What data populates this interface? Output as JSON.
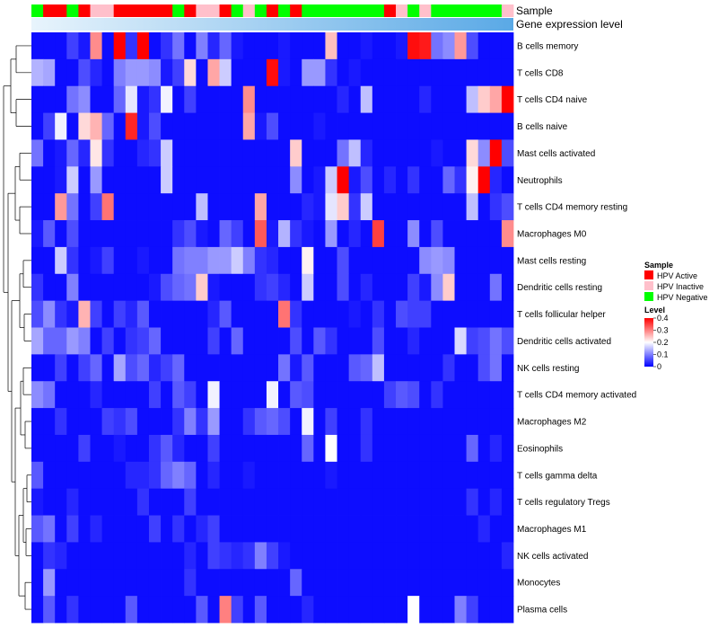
{
  "chart_data": {
    "type": "heatmap",
    "annotation_labels": [
      "Sample",
      "Gene expression level"
    ],
    "sample_legend": {
      "title": "Sample",
      "entries": [
        {
          "label": "HPV Active",
          "color": "#ff0000"
        },
        {
          "label": "HPV Inactive",
          "color": "#ffc0cb"
        },
        {
          "label": "HPV Negative",
          "color": "#00ff00"
        }
      ]
    },
    "level_legend": {
      "title": "Level",
      "ticks": [
        "0.4",
        "0.3",
        "0.2",
        "0.1",
        "0"
      ],
      "tick_values": [
        0.4,
        0.3,
        0.2,
        0.1,
        0
      ],
      "range": [
        0,
        0.4
      ],
      "colors": [
        "#0000ff",
        "#ffffff",
        "#ff0000"
      ]
    },
    "sample_groups": [
      "Negative",
      "Active",
      "Active",
      "Negative",
      "Active",
      "Inactive",
      "Inactive",
      "Active",
      "Active",
      "Active",
      "Active",
      "Active",
      "Negative",
      "Active",
      "Inactive",
      "Inactive",
      "Active",
      "Negative",
      "Inactive",
      "Negative",
      "Active",
      "Negative",
      "Active",
      "Negative",
      "Negative",
      "Negative",
      "Negative",
      "Negative",
      "Negative",
      "Negative",
      "Active",
      "Inactive",
      "Negative",
      "Inactive",
      "Negative",
      "Negative",
      "Negative",
      "Negative",
      "Negative",
      "Negative",
      "Inactive"
    ],
    "rows": [
      "B cells memory",
      "T cells CD8",
      "T cells CD4 naive",
      "B cells naive",
      "Mast cells activated",
      "Neutrophils",
      "T cells CD4 memory resting",
      "Macrophages M0",
      "Mast cells resting",
      "Dendritic cells resting",
      "T cells follicular helper",
      "Dendritic cells activated",
      "NK cells resting",
      "T cells CD4 memory activated",
      "Macrophages M2",
      "Eosinophils",
      "T cells gamma delta",
      "T cells regulatory  Tregs",
      "Macrophages M1",
      "NK cells activated",
      "Monocytes",
      "Plasma cells"
    ],
    "values": [
      [
        0.01,
        0.01,
        0.01,
        0.05,
        0.02,
        0.29,
        0.01,
        0.4,
        0.04,
        0.4,
        0.01,
        0.04,
        0.09,
        0.01,
        0.1,
        0.03,
        0.08,
        0.02,
        0.01,
        0.01,
        0.01,
        0.02,
        0.01,
        0.01,
        0.01,
        0.25,
        0.01,
        0.01,
        0.02,
        0.01,
        0.01,
        0.02,
        0.39,
        0.38,
        0.09,
        0.11,
        0.28,
        0.06,
        0.01,
        0.01,
        0.01
      ],
      [
        0.14,
        0.13,
        0.01,
        0.01,
        0.06,
        0.03,
        0.01,
        0.1,
        0.12,
        0.12,
        0.11,
        0.02,
        0.05,
        0.23,
        0.01,
        0.27,
        0.16,
        0.01,
        0.01,
        0.01,
        0.39,
        0.02,
        0.01,
        0.12,
        0.12,
        0.04,
        0.01,
        0.02,
        0.01,
        0.01,
        0.01,
        0.01,
        0.01,
        0.01,
        0.01,
        0.01,
        0.01,
        0.01,
        0.01,
        0.01,
        0.01
      ],
      [
        0.01,
        0.01,
        0.01,
        0.09,
        0.11,
        0.01,
        0.01,
        0.08,
        0.18,
        0.02,
        0.04,
        0.19,
        0.01,
        0.05,
        0.01,
        0.01,
        0.01,
        0.01,
        0.29,
        0.01,
        0.01,
        0.01,
        0.01,
        0.01,
        0.01,
        0.01,
        0.03,
        0.01,
        0.15,
        0.01,
        0.01,
        0.01,
        0.01,
        0.03,
        0.01,
        0.01,
        0.01,
        0.15,
        0.24,
        0.27,
        0.4
      ],
      [
        0.01,
        0.05,
        0.19,
        0.01,
        0.23,
        0.26,
        0.08,
        0.01,
        0.37,
        0.02,
        0.06,
        0.01,
        0.01,
        0.01,
        0.01,
        0.01,
        0.01,
        0.01,
        0.27,
        0.02,
        0.06,
        0.01,
        0.01,
        0.01,
        0.02,
        0.01,
        0.01,
        0.01,
        0.01,
        0.01,
        0.01,
        0.01,
        0.01,
        0.01,
        0.01,
        0.01,
        0.01,
        0.01,
        0.01,
        0.01,
        0.01
      ],
      [
        0.09,
        0.01,
        0.02,
        0.08,
        0.03,
        0.22,
        0.04,
        0.01,
        0.01,
        0.03,
        0.04,
        0.16,
        0.01,
        0.01,
        0.01,
        0.01,
        0.01,
        0.01,
        0.01,
        0.01,
        0.01,
        0.01,
        0.24,
        0.01,
        0.01,
        0.01,
        0.09,
        0.15,
        0.03,
        0.01,
        0.01,
        0.01,
        0.01,
        0.01,
        0.02,
        0.01,
        0.01,
        0.23,
        0.11,
        0.4,
        0.06
      ],
      [
        0.01,
        0.01,
        0.02,
        0.16,
        0.01,
        0.12,
        0.01,
        0.01,
        0.01,
        0.01,
        0.01,
        0.16,
        0.01,
        0.01,
        0.01,
        0.01,
        0.01,
        0.01,
        0.01,
        0.01,
        0.01,
        0.01,
        0.11,
        0.01,
        0.02,
        0.16,
        0.4,
        0.02,
        0.06,
        0.01,
        0.03,
        0.01,
        0.04,
        0.01,
        0.01,
        0.08,
        0.04,
        0.21,
        0.4,
        0.03,
        0.01
      ],
      [
        0.01,
        0.01,
        0.28,
        0.09,
        0.01,
        0.05,
        0.31,
        0.01,
        0.01,
        0.01,
        0.01,
        0.01,
        0.01,
        0.01,
        0.15,
        0.01,
        0.01,
        0.01,
        0.01,
        0.27,
        0.01,
        0.01,
        0.01,
        0.03,
        0.02,
        0.18,
        0.24,
        0.04,
        0.16,
        0.01,
        0.01,
        0.01,
        0.01,
        0.01,
        0.01,
        0.01,
        0.01,
        0.15,
        0.01,
        0.04,
        0.06
      ],
      [
        0.02,
        0.07,
        0.01,
        0.06,
        0.01,
        0.01,
        0.01,
        0.01,
        0.01,
        0.01,
        0.01,
        0.01,
        0.04,
        0.06,
        0.02,
        0.01,
        0.08,
        0.05,
        0.01,
        0.33,
        0.02,
        0.14,
        0.04,
        0.02,
        0.01,
        0.12,
        0.01,
        0.03,
        0.01,
        0.35,
        0.01,
        0.01,
        0.11,
        0.01,
        0.06,
        0.01,
        0.01,
        0.01,
        0.01,
        0.01,
        0.29
      ],
      [
        0.01,
        0.01,
        0.16,
        0.04,
        0.01,
        0.02,
        0.05,
        0.01,
        0.01,
        0.02,
        0.01,
        0.01,
        0.09,
        0.1,
        0.1,
        0.12,
        0.12,
        0.16,
        0.1,
        0.04,
        0.03,
        0.01,
        0.01,
        0.21,
        0.01,
        0.01,
        0.06,
        0.01,
        0.01,
        0.01,
        0.01,
        0.01,
        0.01,
        0.11,
        0.12,
        0.11,
        0.01,
        0.01,
        0.01,
        0.01,
        0.01
      ],
      [
        0.04,
        0.01,
        0.01,
        0.1,
        0.01,
        0.01,
        0.01,
        0.01,
        0.01,
        0.01,
        0.02,
        0.06,
        0.08,
        0.09,
        0.24,
        0.02,
        0.01,
        0.01,
        0.01,
        0.04,
        0.05,
        0.03,
        0.01,
        0.16,
        0.01,
        0.01,
        0.06,
        0.01,
        0.03,
        0.01,
        0.01,
        0.01,
        0.05,
        0.02,
        0.11,
        0.24,
        0.01,
        0.01,
        0.01,
        0.09,
        0.01
      ],
      [
        0.06,
        0.11,
        0.04,
        0.02,
        0.26,
        0.05,
        0.01,
        0.05,
        0.03,
        0.07,
        0.01,
        0.01,
        0.01,
        0.01,
        0.01,
        0.03,
        0.07,
        0.01,
        0.01,
        0.01,
        0.01,
        0.31,
        0.04,
        0.01,
        0.01,
        0.01,
        0.01,
        0.02,
        0.01,
        0.04,
        0.01,
        0.06,
        0.05,
        0.05,
        0.01,
        0.01,
        0.01,
        0.01,
        0.01,
        0.01,
        0.01
      ],
      [
        0.13,
        0.08,
        0.08,
        0.12,
        0.1,
        0.01,
        0.05,
        0.01,
        0.04,
        0.05,
        0.08,
        0.01,
        0.01,
        0.01,
        0.01,
        0.05,
        0.01,
        0.08,
        0.01,
        0.01,
        0.01,
        0.01,
        0.06,
        0.01,
        0.07,
        0.04,
        0.01,
        0.01,
        0.01,
        0.06,
        0.01,
        0.01,
        0.03,
        0.01,
        0.01,
        0.01,
        0.17,
        0.05,
        0.06,
        0.09,
        0.06
      ],
      [
        0.01,
        0.01,
        0.05,
        0.01,
        0.05,
        0.08,
        0.01,
        0.13,
        0.06,
        0.08,
        0.03,
        0.05,
        0.08,
        0.01,
        0.01,
        0.01,
        0.01,
        0.01,
        0.01,
        0.01,
        0.01,
        0.09,
        0.02,
        0.07,
        0.01,
        0.01,
        0.01,
        0.07,
        0.08,
        0.15,
        0.01,
        0.01,
        0.01,
        0.01,
        0.01,
        0.04,
        0.01,
        0.01,
        0.06,
        0.09,
        0.01
      ],
      [
        0.11,
        0.09,
        0.01,
        0.01,
        0.01,
        0.03,
        0.01,
        0.01,
        0.01,
        0.01,
        0.05,
        0.01,
        0.07,
        0.05,
        0.01,
        0.19,
        0.01,
        0.01,
        0.01,
        0.01,
        0.19,
        0.01,
        0.07,
        0.06,
        0.01,
        0.01,
        0.01,
        0.01,
        0.01,
        0.01,
        0.05,
        0.07,
        0.06,
        0.01,
        0.04,
        0.01,
        0.01,
        0.01,
        0.01,
        0.01,
        0.01
      ],
      [
        0.01,
        0.01,
        0.04,
        0.01,
        0.01,
        0.01,
        0.05,
        0.04,
        0.06,
        0.01,
        0.01,
        0.01,
        0.04,
        0.1,
        0.04,
        0.12,
        0.01,
        0.01,
        0.04,
        0.07,
        0.08,
        0.06,
        0.01,
        0.19,
        0.01,
        0.05,
        0.01,
        0.01,
        0.04,
        0.01,
        0.01,
        0.01,
        0.01,
        0.01,
        0.01,
        0.01,
        0.01,
        0.01,
        0.01,
        0.01,
        0.01
      ],
      [
        0.01,
        0.01,
        0.01,
        0.01,
        0.05,
        0.01,
        0.01,
        0.02,
        0.01,
        0.01,
        0.04,
        0.07,
        0.03,
        0.01,
        0.01,
        0.05,
        0.01,
        0.01,
        0.01,
        0.01,
        0.01,
        0.01,
        0.01,
        0.08,
        0.01,
        0.2,
        0.01,
        0.01,
        0.04,
        0.01,
        0.01,
        0.01,
        0.01,
        0.01,
        0.01,
        0.01,
        0.01,
        0.08,
        0.01,
        0.03,
        0.01
      ],
      [
        0.07,
        0.01,
        0.01,
        0.01,
        0.01,
        0.01,
        0.01,
        0.01,
        0.03,
        0.03,
        0.04,
        0.08,
        0.1,
        0.08,
        0.01,
        0.03,
        0.01,
        0.01,
        0.02,
        0.01,
        0.01,
        0.01,
        0.01,
        0.01,
        0.01,
        0.02,
        0.01,
        0.01,
        0.01,
        0.01,
        0.01,
        0.01,
        0.01,
        0.01,
        0.01,
        0.01,
        0.01,
        0.01,
        0.01,
        0.01,
        0.01
      ],
      [
        0.02,
        0.01,
        0.01,
        0.03,
        0.01,
        0.01,
        0.01,
        0.01,
        0.01,
        0.04,
        0.01,
        0.01,
        0.01,
        0.05,
        0.01,
        0.01,
        0.01,
        0.01,
        0.01,
        0.01,
        0.01,
        0.01,
        0.01,
        0.01,
        0.01,
        0.01,
        0.01,
        0.01,
        0.01,
        0.01,
        0.01,
        0.01,
        0.01,
        0.01,
        0.01,
        0.01,
        0.01,
        0.04,
        0.01,
        0.03,
        0.01
      ],
      [
        0.07,
        0.09,
        0.01,
        0.05,
        0.01,
        0.03,
        0.01,
        0.01,
        0.01,
        0.01,
        0.05,
        0.01,
        0.04,
        0.01,
        0.03,
        0.05,
        0.01,
        0.01,
        0.01,
        0.01,
        0.01,
        0.01,
        0.01,
        0.01,
        0.01,
        0.01,
        0.01,
        0.01,
        0.01,
        0.01,
        0.01,
        0.01,
        0.01,
        0.01,
        0.01,
        0.01,
        0.01,
        0.01,
        0.03,
        0.01,
        0.01
      ],
      [
        0.01,
        0.04,
        0.03,
        0.01,
        0.01,
        0.01,
        0.01,
        0.01,
        0.01,
        0.01,
        0.01,
        0.01,
        0.01,
        0.03,
        0.01,
        0.05,
        0.04,
        0.03,
        0.04,
        0.1,
        0.05,
        0.02,
        0.01,
        0.01,
        0.01,
        0.01,
        0.01,
        0.01,
        0.01,
        0.01,
        0.01,
        0.01,
        0.01,
        0.01,
        0.01,
        0.01,
        0.01,
        0.01,
        0.01,
        0.01,
        0.03
      ],
      [
        0.01,
        0.12,
        0.01,
        0.01,
        0.01,
        0.01,
        0.01,
        0.01,
        0.01,
        0.01,
        0.01,
        0.01,
        0.01,
        0.04,
        0.01,
        0.01,
        0.01,
        0.01,
        0.01,
        0.01,
        0.01,
        0.01,
        0.08,
        0.01,
        0.01,
        0.01,
        0.01,
        0.01,
        0.01,
        0.01,
        0.01,
        0.01,
        0.01,
        0.01,
        0.01,
        0.01,
        0.01,
        0.01,
        0.01,
        0.01,
        0.01
      ],
      [
        0.01,
        0.07,
        0.01,
        0.04,
        0.01,
        0.01,
        0.01,
        0.01,
        0.07,
        0.01,
        0.01,
        0.01,
        0.01,
        0.01,
        0.07,
        0.01,
        0.3,
        0.05,
        0.01,
        0.07,
        0.01,
        0.01,
        0.01,
        0.03,
        0.01,
        0.01,
        0.01,
        0.01,
        0.01,
        0.01,
        0.01,
        0.01,
        0.2,
        0.01,
        0.01,
        0.01,
        0.1,
        0.05,
        0.01,
        0.01,
        0.01
      ]
    ]
  }
}
